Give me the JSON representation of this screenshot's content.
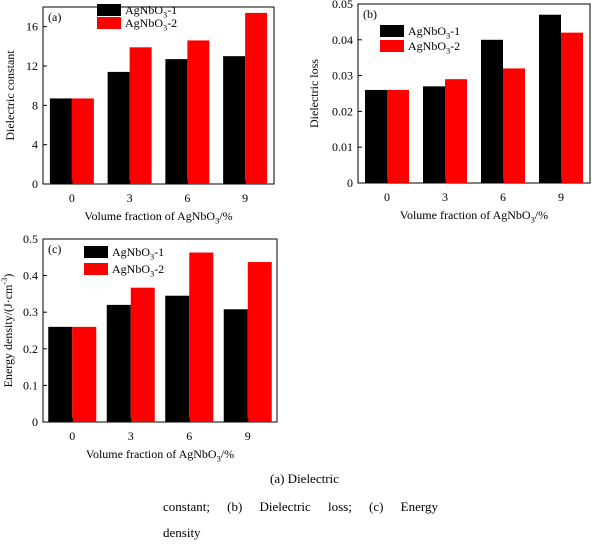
{
  "chart_data": [
    {
      "type": "bar",
      "panel_label": "(a)",
      "categories": [
        "0",
        "3",
        "6",
        "9"
      ],
      "series": [
        {
          "name": "AgNbO3-1",
          "values": [
            8.7,
            11.4,
            12.7,
            13.0
          ]
        },
        {
          "name": "AgNbO3-2",
          "values": [
            8.7,
            13.9,
            14.6,
            17.4
          ]
        }
      ],
      "xlabel": "Volume fraction of AgNbO3/%",
      "ylabel": "Dielectric constant",
      "ylim": [
        0,
        18
      ],
      "yticks": [
        "0",
        "4",
        "8",
        "12",
        "16"
      ],
      "legend": "top-left",
      "grid": false
    },
    {
      "type": "bar",
      "panel_label": "(b)",
      "categories": [
        "0",
        "3",
        "6",
        "9"
      ],
      "series": [
        {
          "name": "AgNbO3-1",
          "values": [
            0.026,
            0.027,
            0.04,
            0.047
          ]
        },
        {
          "name": "AgNbO3-2",
          "values": [
            0.026,
            0.029,
            0.032,
            0.042
          ]
        }
      ],
      "xlabel": "Volume fraction of AgNbO3/%",
      "ylabel": "Dielectric loss",
      "ylim": [
        0,
        0.05
      ],
      "yticks": [
        "0",
        "0.01",
        "0.02",
        "0.03",
        "0.04",
        "0.05"
      ],
      "legend": "top-left",
      "grid": false
    },
    {
      "type": "bar",
      "panel_label": "(c)",
      "categories": [
        "0",
        "3",
        "6",
        "9"
      ],
      "series": [
        {
          "name": "AgNbO3-1",
          "values": [
            0.26,
            0.32,
            0.345,
            0.308
          ]
        },
        {
          "name": "AgNbO3-2",
          "values": [
            0.26,
            0.367,
            0.463,
            0.437
          ]
        }
      ],
      "xlabel": "Volume fraction of AgNbO3/%",
      "ylabel": "Energy density/(J·cm-3)",
      "ylim": [
        0,
        0.5
      ],
      "yticks": [
        "0",
        "0.1",
        "0.2",
        "0.3",
        "0.4",
        "0.5"
      ],
      "legend": "top-left",
      "grid": false
    }
  ],
  "colors": {
    "series1": "#000000",
    "series2": "#ff0000"
  },
  "caption": {
    "line1": "(a) Dielectric",
    "line2": [
      "constant;",
      "(b)",
      "Dielectric",
      "loss;",
      "(c)",
      "Energy"
    ],
    "line3": "density"
  }
}
